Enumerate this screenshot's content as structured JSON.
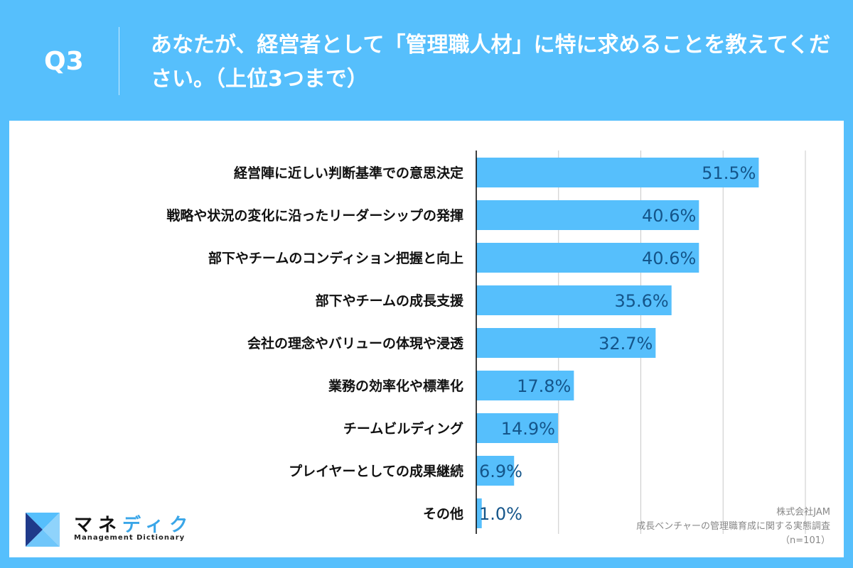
{
  "header": {
    "q": "Q3",
    "title": "あなたが、経営者として「管理職人材」に特に求めることを教えてください。（上位3つまで）"
  },
  "chart_data": {
    "type": "bar",
    "orientation": "horizontal",
    "categories": [
      "経営陣に近しい判断基準での意思決定",
      "戦略や状況の変化に沿ったリーダーシップの発揮",
      "部下やチームのコンディション把握と向上",
      "部下やチームの成長支援",
      "会社の理念やバリューの体現や浸透",
      "業務の効率化や標準化",
      "チームビルディング",
      "プレイヤーとしての成果継続",
      "その他"
    ],
    "values": [
      51.5,
      40.6,
      40.6,
      35.6,
      32.7,
      17.8,
      14.9,
      6.9,
      1.0
    ],
    "labels": [
      "51.5%",
      "40.6%",
      "40.6%",
      "35.6%",
      "32.7%",
      "17.8%",
      "14.9%",
      "6.9%",
      "1.0%"
    ],
    "xlim": [
      0,
      60
    ],
    "gridlines": [
      15,
      30,
      45,
      60
    ],
    "grid": true,
    "bar_color": "#56bffc",
    "label_color": "#14558a"
  },
  "logo": {
    "kana_a": "マネ",
    "kana_b": "ディク",
    "en": "Management Dictionary"
  },
  "source": {
    "company": "株式会社JAM",
    "survey": "成長ベンチャーの管理職育成に関する実態調査",
    "n": "（n=101）"
  }
}
